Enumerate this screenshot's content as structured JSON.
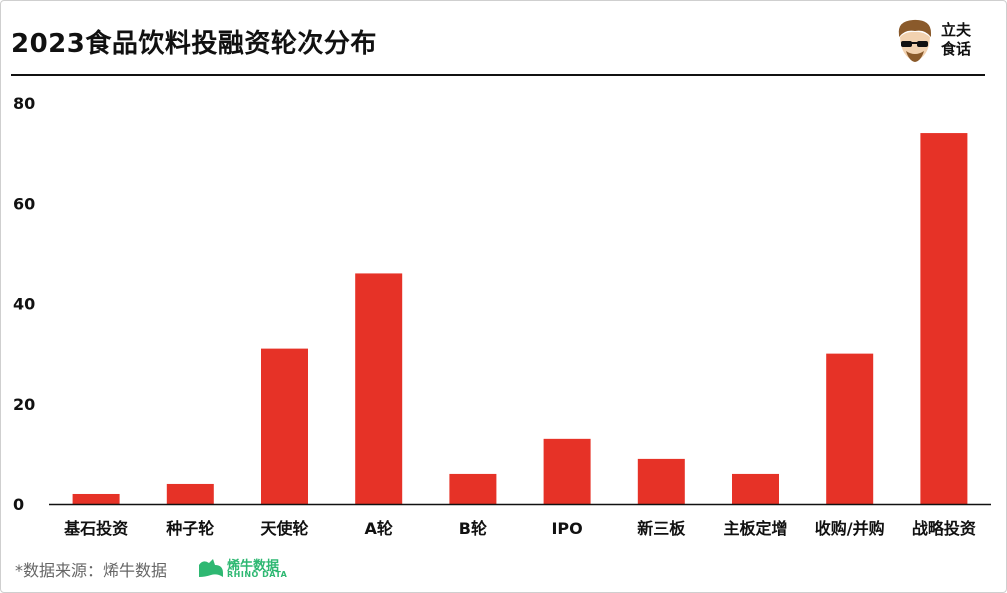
{
  "title": "2023食品饮料投融资轮次分布",
  "brand": {
    "line1": "立夫",
    "line2": "食话"
  },
  "footer": {
    "source": "*数据来源：烯牛数据",
    "rhino_name": "烯牛数据",
    "rhino_sub": "RHINO DATA"
  },
  "colors": {
    "bar": "#e63227",
    "axis": "#111111",
    "text": "#111111",
    "accent_green": "#2eb872"
  },
  "chart_data": {
    "type": "bar",
    "title": "2023食品饮料投融资轮次分布",
    "xlabel": "",
    "ylabel": "",
    "categories": [
      "基石投资",
      "种子轮",
      "天使轮",
      "A轮",
      "B轮",
      "IPO",
      "新三板",
      "主板定增",
      "收购/并购",
      "战略投资"
    ],
    "values": [
      2,
      4,
      31,
      46,
      6,
      13,
      9,
      6,
      30,
      74
    ],
    "ylim": [
      0,
      80
    ],
    "yticks": [
      0,
      20,
      40,
      60,
      80
    ],
    "grid": false,
    "legend": "none"
  }
}
